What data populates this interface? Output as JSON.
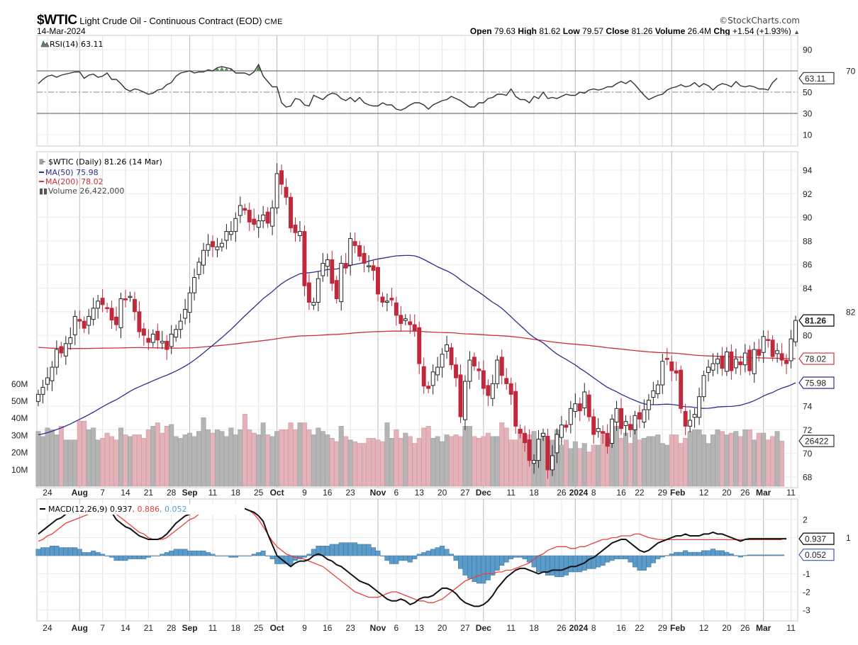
{
  "header": {
    "symbol": "$WTIC",
    "name": "Light Crude Oil - Continuous Contract (EOD)",
    "exchange": "CME",
    "date": "14-Mar-2024",
    "brand": "©StockCharts.com",
    "quote": {
      "open_label": "Open",
      "open": "79.63",
      "high_label": "High",
      "high": "81.62",
      "low_label": "Low",
      "low": "79.57",
      "close_label": "Close",
      "close": "81.26",
      "volume_label": "Volume",
      "volume": "26.4M",
      "chg_label": "Chg",
      "chg": "+1.54 (+1.93%)",
      "chg_arrow": "▲"
    }
  },
  "colors": {
    "up_candle": "#ffffff",
    "down_candle": "#c0283b",
    "ma50": "#2b2f8f",
    "ma200": "#c8303e",
    "volume_up": "#b4b4b4",
    "volume_down": "#e3b3b9",
    "rsi_fill": "#5d8a5d",
    "macd_line": "#111111",
    "signal_line": "#e8403a",
    "histogram": "#5b9bc9"
  },
  "chart_data": [
    {
      "type": "line",
      "panel": "rsi",
      "title": "RSI(14) 63.11",
      "legend_icon": "rsi-icon",
      "yticks": [
        90,
        70,
        50,
        30,
        10
      ],
      "ylim": [
        0,
        100
      ],
      "overbought": 70,
      "oversold": 30,
      "midline": 50,
      "last_value_label": "63.11",
      "values": [
        58,
        62,
        65,
        66,
        64,
        66,
        67,
        68,
        69,
        69,
        63,
        66,
        67,
        64,
        65,
        68,
        62,
        62,
        58,
        53,
        51,
        53,
        52,
        50,
        48,
        49,
        52,
        53,
        57,
        59,
        65,
        68,
        69,
        70,
        68,
        69,
        69,
        71,
        70,
        73,
        74,
        73,
        72,
        68,
        68,
        68,
        66,
        69,
        76,
        65,
        60,
        55,
        55,
        40,
        36,
        37,
        44,
        43,
        38,
        37,
        47,
        45,
        43,
        47,
        49,
        48,
        44,
        42,
        45,
        41,
        45,
        40,
        38,
        37,
        37,
        40,
        38,
        38,
        34,
        33,
        35,
        38,
        40,
        40,
        38,
        34,
        38,
        40,
        42,
        43,
        46,
        44,
        42,
        39,
        36,
        36,
        40,
        40,
        44,
        45,
        48,
        48,
        47,
        53,
        46,
        43,
        43,
        40,
        46,
        44,
        50,
        44,
        45,
        44,
        46,
        48,
        47,
        47,
        50,
        49,
        52,
        53,
        52,
        53,
        55,
        55,
        58,
        60,
        58,
        61,
        57,
        52,
        47,
        43,
        45,
        47,
        48,
        52,
        54,
        55,
        57,
        55,
        56,
        59,
        55,
        58,
        56,
        52,
        56,
        58,
        57,
        55,
        60,
        56,
        55,
        56,
        55,
        53,
        53,
        52,
        59,
        63.11
      ]
    },
    {
      "type": "candlestick",
      "panel": "price",
      "title": "$WTIC (Daily) 81.26 (14 Mar)",
      "legend": [
        {
          "name": "$WTIC (Daily) 81.26 (14 Mar)",
          "icon": "candlestick-icon"
        },
        {
          "name": "MA(50) 75.98",
          "color": "#2b2f8f"
        },
        {
          "name": "MA(200) 78.02",
          "color": "#c8303e"
        },
        {
          "name": "Volume 26,422,000",
          "icon": "volume-icon"
        }
      ],
      "yticks": [
        94,
        92,
        90,
        88,
        86,
        84,
        82,
        80,
        74,
        72,
        70,
        68
      ],
      "ylim": [
        67.2,
        95.5
      ],
      "last_labels": {
        "close": "81.26",
        "ma200": "78.02",
        "ma50": "75.98",
        "volume": "26422"
      },
      "close": [
        75.0,
        75.6,
        76.4,
        77.3,
        78.8,
        78.5,
        79.3,
        79.8,
        81.6,
        81.2,
        80.6,
        81.6,
        82.3,
        82.9,
        82.6,
        82.3,
        81.3,
        80.9,
        83.1,
        83.0,
        83.3,
        82.0,
        80.3,
        80.0,
        79.4,
        80.1,
        79.6,
        79.5,
        78.8,
        80.1,
        80.5,
        81.2,
        82.2,
        83.6,
        84.9,
        86.2,
        87.2,
        87.7,
        87.5,
        87.5,
        87.8,
        88.8,
        88.8,
        89.9,
        91.0,
        90.6,
        89.6,
        89.4,
        89.7,
        90.2,
        89.5,
        90.8,
        93.7,
        92.8,
        91.7,
        89.1,
        88.7,
        88.8,
        84.2,
        82.8,
        82.8,
        84.8,
        86.1,
        86.4,
        84.4,
        83.1,
        86.1,
        85.7,
        88.2,
        87.6,
        86.7,
        86.1,
        85.9,
        85.5,
        83.5,
        82.8,
        82.9,
        83.0,
        81.7,
        81.0,
        81.4,
        80.9,
        80.4,
        77.6,
        75.7,
        75.5,
        76.9,
        77.3,
        78.4,
        79.2,
        77.5,
        76.4,
        73.1,
        76.1,
        77.9,
        77.4,
        77.0,
        75.5,
        74.9,
        75.9,
        77.9,
        76.6,
        75.9,
        75.0,
        72.3,
        71.7,
        70.9,
        69.4,
        69.4,
        71.2,
        71.7,
        68.6,
        69.8,
        71.6,
        72.4,
        72.2,
        73.8,
        74.2,
        73.6,
        75.2,
        73.1,
        71.6,
        72.1,
        71.7,
        70.6,
        72.9,
        73.8,
        72.1,
        72.7,
        72.0,
        73.2,
        72.9,
        73.7,
        74.5,
        75.3,
        75.8,
        77.8,
        78.0,
        77.0,
        76.8,
        73.8,
        72.3,
        72.8,
        73.3,
        74.8,
        76.6,
        77.3,
        77.6,
        78.0,
        77.2,
        78.6,
        77.0,
        78.0,
        77.5,
        78.5,
        77.0,
        78.8,
        78.3,
        79.9,
        79.6,
        78.2,
        78.7,
        77.9,
        77.6,
        79.7,
        81.26
      ]
    },
    {
      "type": "bar",
      "panel": "volume",
      "yticks_label": [
        "60M",
        "50M",
        "40M",
        "30M",
        "20M",
        "10M"
      ],
      "ylim": [
        0,
        70
      ],
      "values_millions": [
        32,
        29,
        34,
        33,
        30,
        35,
        27,
        27,
        27,
        38,
        38,
        33,
        34,
        27,
        28,
        31,
        29,
        27,
        34,
        30,
        29,
        30,
        30,
        28,
        33,
        35,
        37,
        31,
        35,
        36,
        29,
        28,
        30,
        31,
        29,
        32,
        40,
        33,
        31,
        33,
        32,
        29,
        34,
        30,
        33,
        42,
        33,
        31,
        30,
        37,
        30,
        29,
        32,
        33,
        33,
        37,
        33,
        37,
        37,
        33,
        30,
        34,
        32,
        30,
        28,
        26,
        35,
        29,
        27,
        26,
        25,
        25,
        28,
        28,
        27,
        26,
        37,
        28,
        33,
        28,
        31,
        29,
        25,
        28,
        34,
        35,
        28,
        29,
        26,
        30,
        29,
        30,
        29,
        35,
        35,
        29,
        28,
        29,
        31,
        29,
        29,
        37,
        34,
        27,
        27,
        33,
        29,
        30,
        32,
        26,
        31,
        26,
        27,
        33,
        24,
        27,
        22,
        26,
        22,
        25,
        20,
        24,
        24,
        32,
        26,
        28,
        35,
        28,
        31,
        25,
        36,
        27,
        28,
        29,
        29,
        30,
        25,
        24,
        30,
        30,
        25,
        28,
        32,
        33,
        33,
        30,
        25,
        30,
        33,
        32,
        30,
        31,
        32,
        29,
        33,
        33,
        27,
        31,
        31,
        27,
        29,
        32,
        26.4
      ]
    },
    {
      "type": "line",
      "panel": "macd",
      "title": "MACD(12,26,9)",
      "legend_values": {
        "macd": "0.937",
        "signal": "0.886",
        "histogram": "0.052"
      },
      "yticks": [
        2,
        1,
        -1,
        -2,
        -3
      ],
      "ylim": [
        -3.2,
        2.6
      ],
      "last_labels": {
        "macd": "0.937",
        "histogram": "0.052"
      },
      "macd": [
        1.2,
        1.4,
        1.6,
        1.8,
        2.0,
        2.1,
        2.3,
        2.4,
        2.5,
        2.5,
        2.4,
        2.5,
        2.6,
        2.6,
        2.6,
        2.6,
        2.4,
        2.0,
        1.8,
        1.6,
        1.5,
        1.3,
        1.1,
        1.0,
        0.9,
        0.9,
        0.9,
        1.0,
        1.2,
        1.5,
        1.8,
        2.0,
        2.2,
        2.3,
        2.4,
        2.6,
        2.7,
        2.7,
        2.7,
        2.6,
        2.6,
        2.6,
        2.5,
        2.5,
        2.6,
        2.6,
        2.5,
        2.4,
        2.2,
        1.9,
        1.2,
        0.6,
        0.0,
        -0.2,
        -0.4,
        -0.6,
        -0.4,
        -0.3,
        -0.3,
        -0.2,
        0.0,
        0.1,
        0.0,
        -0.2,
        -0.3,
        -0.5,
        -0.6,
        -0.8,
        -1.0,
        -1.2,
        -1.4,
        -1.5,
        -1.6,
        -1.8,
        -2.0,
        -2.2,
        -2.4,
        -2.5,
        -2.5,
        -2.4,
        -2.5,
        -2.7,
        -2.6,
        -2.4,
        -2.3,
        -2.3,
        -2.2,
        -2.0,
        -1.8,
        -1.8,
        -1.9,
        -2.1,
        -2.4,
        -2.6,
        -2.7,
        -2.8,
        -2.8,
        -2.7,
        -2.5,
        -2.2,
        -1.8,
        -1.5,
        -1.2,
        -1.0,
        -0.8,
        -0.7,
        -0.7,
        -0.8,
        -0.9,
        -1.0,
        -0.9,
        -0.9,
        -0.8,
        -0.8,
        -0.8,
        -0.7,
        -0.6,
        -0.6,
        -0.5,
        -0.4,
        -0.2,
        -0.1,
        0.1,
        0.3,
        0.5,
        0.7,
        0.8,
        0.9,
        0.9,
        0.7,
        0.5,
        0.3,
        0.2,
        0.3,
        0.5,
        0.7,
        0.8,
        0.9,
        1.0,
        1.1,
        1.1,
        1.2,
        1.1,
        1.1,
        1.1,
        1.2,
        1.2,
        1.3,
        1.2,
        1.2,
        1.1,
        1.0,
        0.9,
        0.8,
        0.9,
        0.937,
        0.937,
        0.937,
        0.937,
        0.937,
        0.937,
        0.937,
        0.937,
        0.937
      ],
      "signal": [
        0.8,
        0.9,
        1.1,
        1.2,
        1.4,
        1.6,
        1.8,
        1.9,
        2.0,
        2.1,
        2.2,
        2.3,
        2.3,
        2.4,
        2.5,
        2.6,
        2.5,
        2.3,
        2.1,
        1.9,
        1.7,
        1.5,
        1.3,
        1.2,
        1.0,
        0.9,
        0.9,
        0.9,
        1.0,
        1.2,
        1.4,
        1.6,
        1.8,
        2.0,
        2.1,
        2.3,
        2.4,
        2.5,
        2.6,
        2.6,
        2.6,
        2.6,
        2.6,
        2.6,
        2.6,
        2.6,
        2.5,
        2.3,
        2.0,
        1.6,
        1.2,
        0.8,
        0.5,
        0.3,
        0.1,
        0.0,
        -0.1,
        -0.1,
        -0.2,
        -0.3,
        -0.4,
        -0.5,
        -0.6,
        -0.8,
        -1.0,
        -1.2,
        -1.4,
        -1.6,
        -1.8,
        -2.0,
        -2.1,
        -2.2,
        -2.3,
        -2.3,
        -2.3,
        -2.2,
        -2.1,
        -2.0,
        -2.0,
        -2.1,
        -2.2,
        -2.3,
        -2.4,
        -2.5,
        -2.5,
        -2.6,
        -2.6,
        -2.5,
        -2.4,
        -2.2,
        -2.0,
        -1.8,
        -1.6,
        -1.4,
        -1.3,
        -1.2,
        -1.1,
        -1.0,
        -1.0,
        -1.0,
        -0.9,
        -0.9,
        -0.8,
        -0.8,
        -0.7,
        -0.6,
        -0.5,
        -0.4,
        -0.2,
        0.0,
        0.1,
        0.3,
        0.4,
        0.5,
        0.5,
        0.5,
        0.4,
        0.4,
        0.5,
        0.5,
        0.6,
        0.7,
        0.8,
        0.9,
        0.9,
        1.0,
        1.0,
        1.1,
        1.1,
        1.1,
        1.2,
        1.2,
        1.1,
        1.0,
        0.95,
        0.9,
        0.886,
        0.886,
        0.886,
        0.886,
        0.886,
        0.886,
        0.886,
        0.886,
        0.886,
        0.886,
        0.886,
        0.886,
        0.886,
        0.886,
        0.886,
        0.886,
        0.886,
        0.886,
        0.886,
        0.886,
        0.886,
        0.886,
        0.886,
        0.886,
        0.886,
        0.886,
        0.886
      ]
    }
  ],
  "x_axis": {
    "labels": [
      {
        "text": "24",
        "bold": false
      },
      {
        "text": "Aug",
        "bold": true
      },
      {
        "text": "7",
        "bold": false
      },
      {
        "text": "14",
        "bold": false
      },
      {
        "text": "21",
        "bold": false
      },
      {
        "text": "28",
        "bold": false
      },
      {
        "text": "Sep",
        "bold": true
      },
      {
        "text": "11",
        "bold": false
      },
      {
        "text": "18",
        "bold": false
      },
      {
        "text": "25",
        "bold": false
      },
      {
        "text": "Oct",
        "bold": true
      },
      {
        "text": "9",
        "bold": false
      },
      {
        "text": "16",
        "bold": false
      },
      {
        "text": "23",
        "bold": false
      },
      {
        "text": "Nov",
        "bold": true
      },
      {
        "text": "6",
        "bold": false
      },
      {
        "text": "13",
        "bold": false
      },
      {
        "text": "20",
        "bold": false
      },
      {
        "text": "27",
        "bold": false
      },
      {
        "text": "Dec",
        "bold": true
      },
      {
        "text": "11",
        "bold": false
      },
      {
        "text": "18",
        "bold": false
      },
      {
        "text": "26",
        "bold": false
      },
      {
        "text": "2024",
        "bold": true
      },
      {
        "text": "8",
        "bold": false
      },
      {
        "text": "16",
        "bold": false
      },
      {
        "text": "22",
        "bold": false
      },
      {
        "text": "29",
        "bold": false
      },
      {
        "text": "Feb",
        "bold": true
      },
      {
        "text": "12",
        "bold": false
      },
      {
        "text": "20",
        "bold": false
      },
      {
        "text": "26",
        "bold": false
      },
      {
        "text": "Mar",
        "bold": true
      },
      {
        "text": "11",
        "bold": false
      }
    ]
  }
}
